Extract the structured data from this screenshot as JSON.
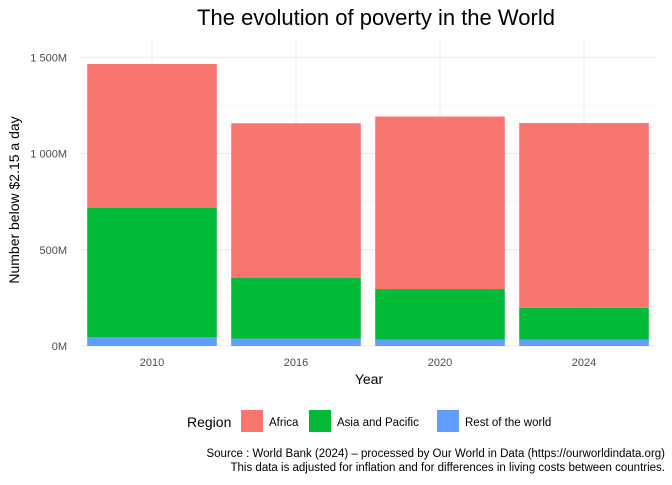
{
  "chart_data": {
    "type": "bar",
    "stacked": true,
    "title": "The evolution of poverty in the World",
    "xlabel": "Year",
    "ylabel": "Number below $2.15 a day",
    "categories": [
      "2010",
      "2016",
      "2020",
      "2024"
    ],
    "ylim": [
      0,
      1600
    ],
    "yticks": [
      0,
      500,
      1000,
      1500
    ],
    "ytick_labels": [
      "0M",
      "500M",
      "1 000M",
      "1 500M"
    ],
    "grid": true,
    "legend": {
      "title": "Region",
      "position": "bottom",
      "entries": [
        "Africa",
        "Asia and Pacific",
        "Rest of the world"
      ]
    },
    "series": [
      {
        "name": "Rest of the world",
        "color": "#619CFF",
        "values": [
          45,
          38,
          33,
          33
        ]
      },
      {
        "name": "Asia and Pacific",
        "color": "#00BA38",
        "values": [
          672,
          315,
          263,
          165
        ]
      },
      {
        "name": "Africa",
        "color": "#F8766D",
        "values": [
          748,
          804,
          896,
          960
        ]
      }
    ],
    "notes": [
      "Source : World Bank (2024) – processed by Our World in Data (https://ourworldindata.org)",
      "This data is adjusted for inflation and for differences in living costs between countries."
    ]
  }
}
